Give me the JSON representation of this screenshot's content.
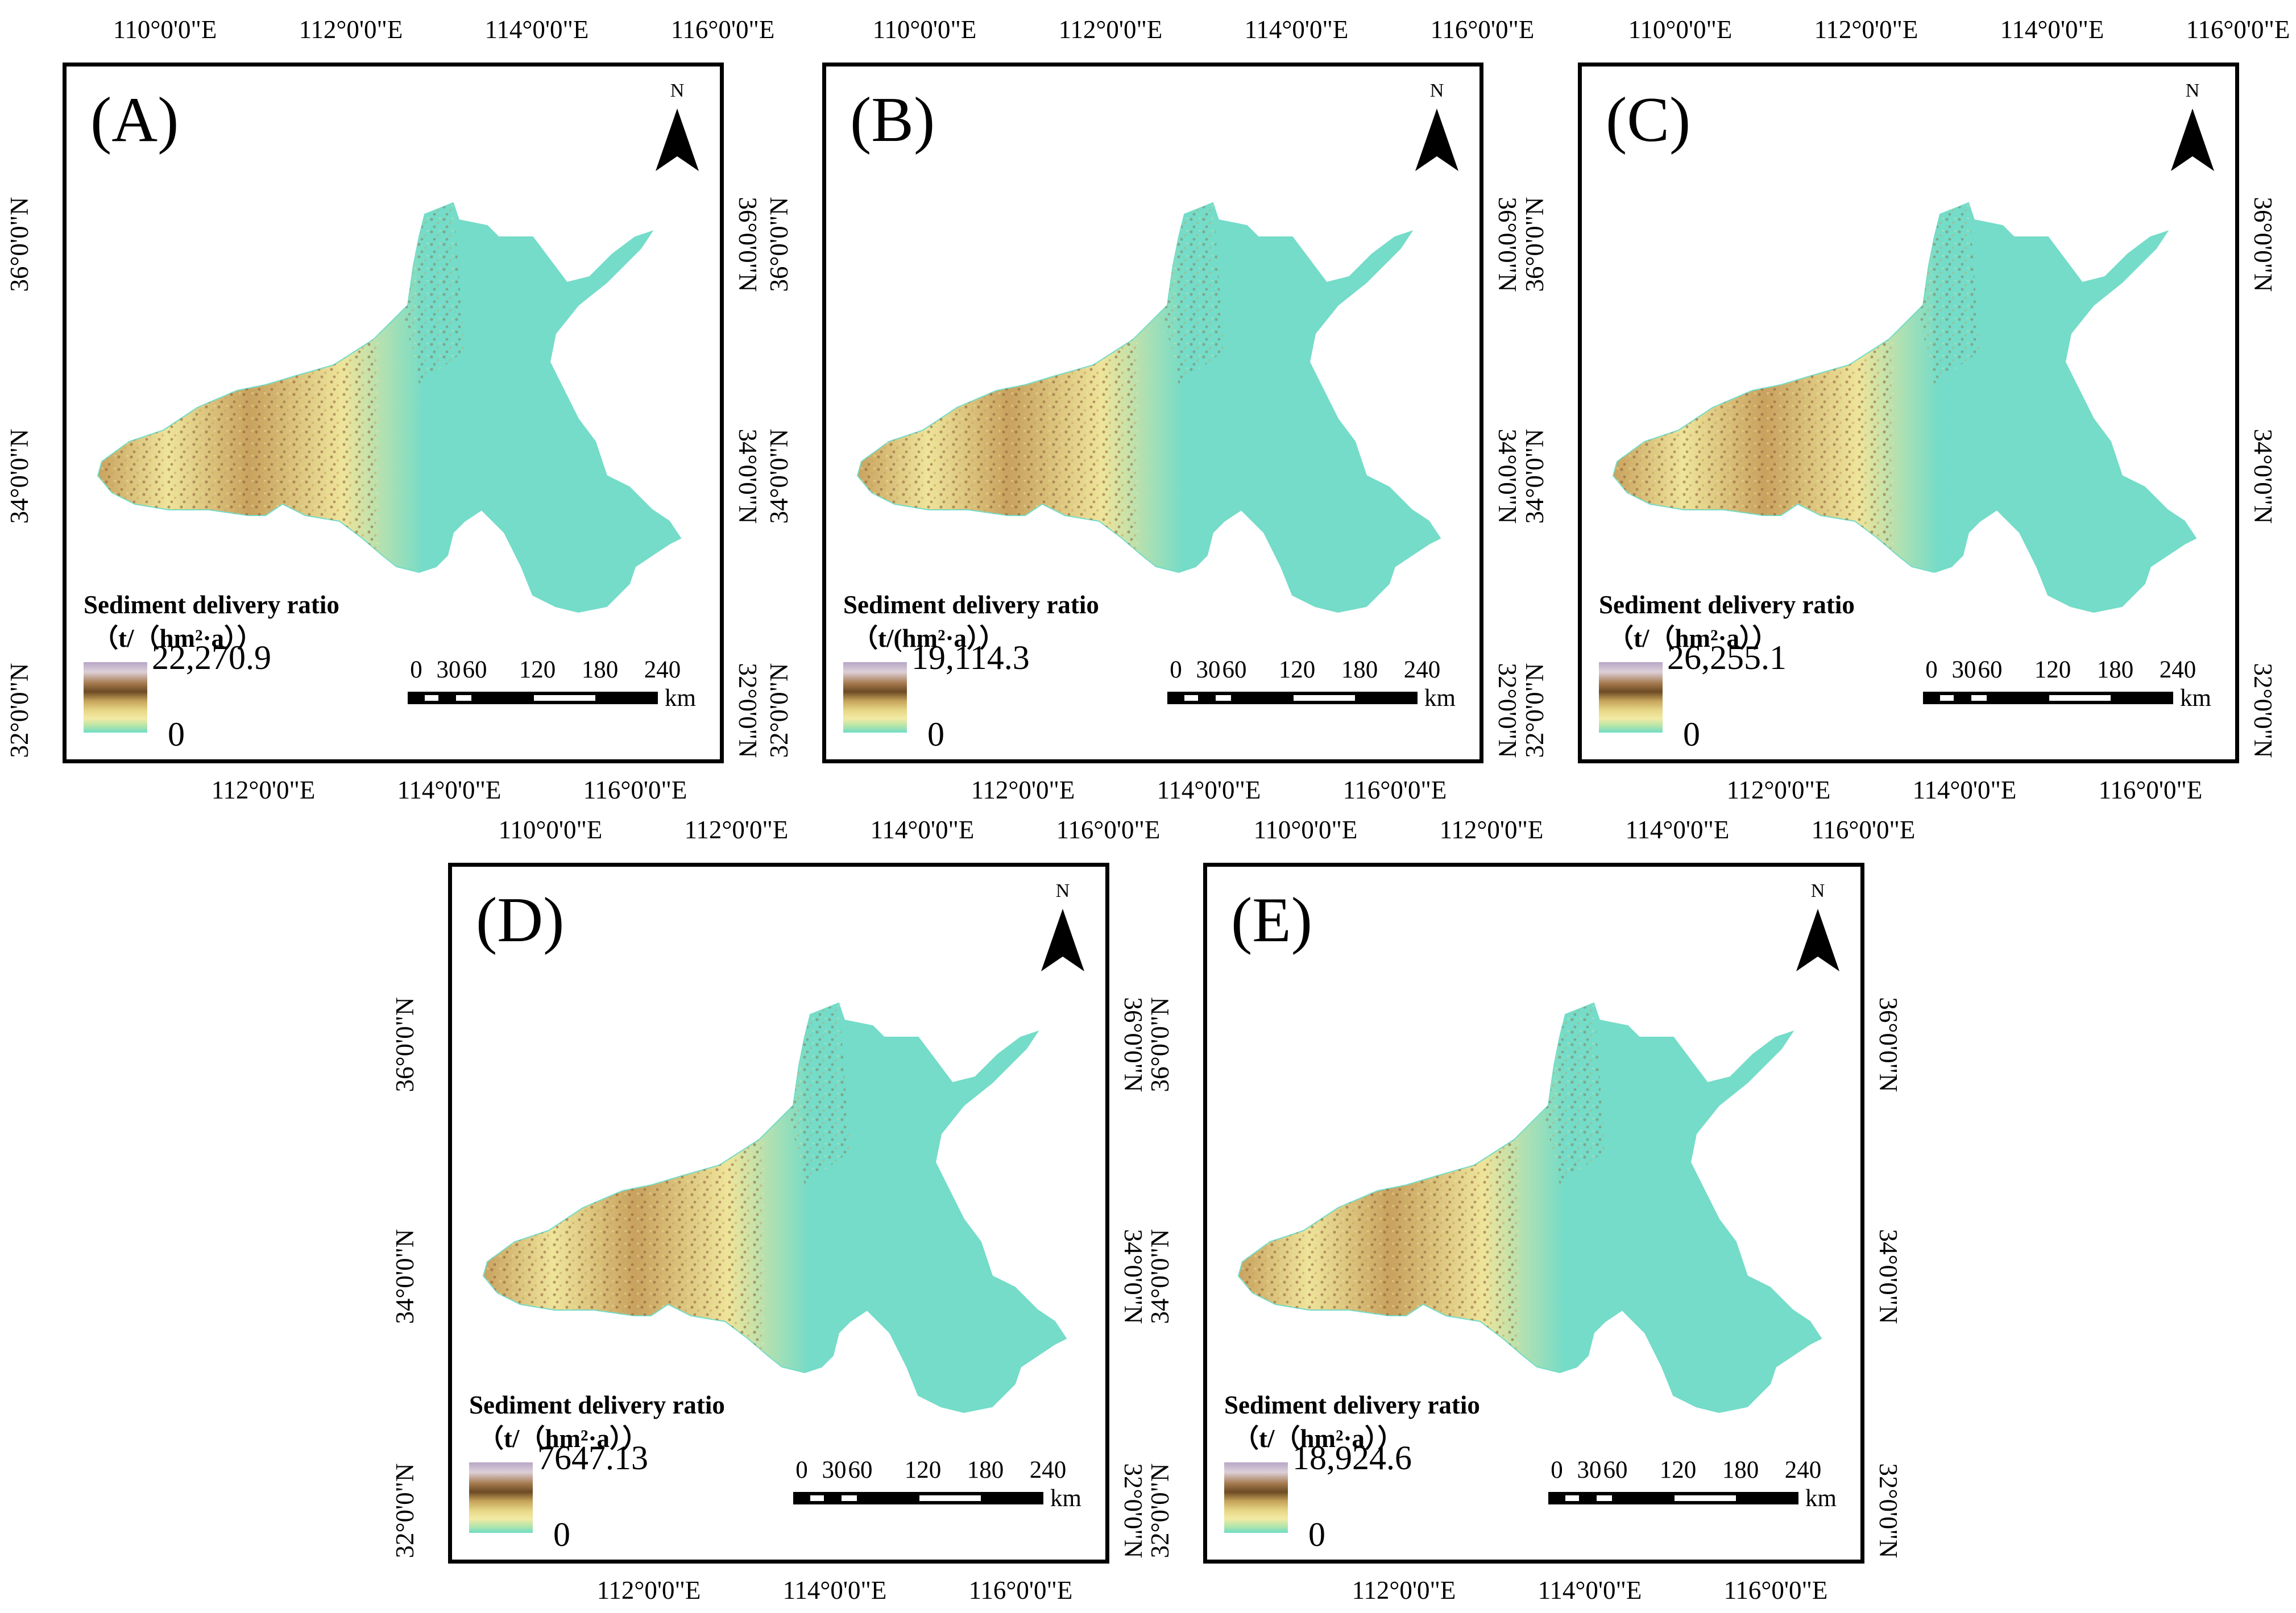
{
  "figure": {
    "legend_title": "Sediment delivery ratio",
    "scale_labels": [
      "0",
      "30",
      "60",
      "120",
      "180",
      "240"
    ],
    "scale_unit": "km",
    "north_label": "N",
    "ticks": {
      "top": [
        "110°0'0\"E",
        "112°0'0\"E",
        "114°0'0\"E",
        "116°0'0\"E"
      ],
      "bottom": [
        "112°0'0\"E",
        "114°0'0\"E",
        "116°0'0\"E"
      ],
      "side": [
        "36°0'0\"N",
        "34°0'0\"N",
        "32°0'0\"N"
      ]
    },
    "colors": {
      "lowland": "#74dcc8",
      "low": "#eee49a",
      "mid": "#c8a25e",
      "high": "#8a5a35",
      "max": "#b8a8c8"
    }
  },
  "panels": [
    {
      "label": "(A)",
      "legend_unit": "（t/（hm²·a））",
      "max": "22,270.9",
      "min": "0"
    },
    {
      "label": "(B)",
      "legend_unit": "（t/(hm²·a））",
      "max": "19,114.3",
      "min": "0"
    },
    {
      "label": "(C)",
      "legend_unit": "（t/（hm²·a））",
      "max": "26,255.1",
      "min": "0"
    },
    {
      "label": "(D)",
      "legend_unit": "（t/（hm²·a））",
      "max": "7647.13",
      "min": "0"
    },
    {
      "label": "(E)",
      "legend_unit": "（t/（hm²·a））",
      "max": "18,924.6",
      "min": "0"
    }
  ]
}
